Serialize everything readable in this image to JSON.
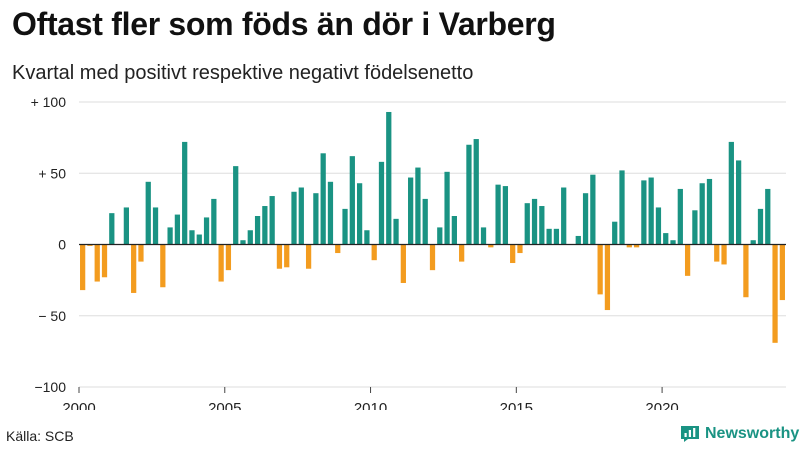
{
  "title": "Oftast fler som föds än dör i Varberg",
  "subtitle": "Kvartal med positivt respektive negativt födelsenetto",
  "source": "Källa: SCB",
  "brand": "Newsworthy",
  "colors": {
    "positive": "#1a9383",
    "negative": "#f39c1f",
    "grid": "#dddddd",
    "axis": "#222222"
  },
  "chart_data": {
    "type": "bar",
    "x_start": 2000.0,
    "x_step": 0.25,
    "xlim": [
      2000,
      2024.25
    ],
    "ylim": [
      -100,
      100
    ],
    "yticks": [
      100,
      50,
      0,
      -50,
      -100
    ],
    "ytick_labels": [
      "+ 100",
      "+  50",
      "0",
      "− 50",
      "−100"
    ],
    "xticks": [
      2000,
      2005,
      2010,
      2015,
      2020
    ],
    "xtick_labels": [
      "2000",
      "2005",
      "2010",
      "2015",
      "2020"
    ],
    "values": [
      -32,
      -1,
      -26,
      -23,
      22,
      0,
      26,
      -34,
      -12,
      44,
      26,
      -30,
      12,
      21,
      72,
      10,
      7,
      19,
      32,
      -26,
      -18,
      55,
      3,
      10,
      20,
      27,
      34,
      -17,
      -16,
      37,
      40,
      -17,
      36,
      64,
      44,
      -6,
      25,
      62,
      43,
      10,
      -11,
      58,
      93,
      18,
      -27,
      47,
      54,
      32,
      -18,
      12,
      51,
      20,
      -12,
      70,
      74,
      12,
      -2,
      42,
      41,
      -13,
      -6,
      29,
      32,
      27,
      11,
      11,
      40,
      0,
      6,
      36,
      49,
      -35,
      -46,
      16,
      52,
      -2,
      -2,
      45,
      47,
      26,
      8,
      3,
      39,
      -22,
      24,
      43,
      46,
      -12,
      -14,
      72,
      59,
      -37,
      3,
      25,
      39,
      -69,
      -39
    ]
  }
}
